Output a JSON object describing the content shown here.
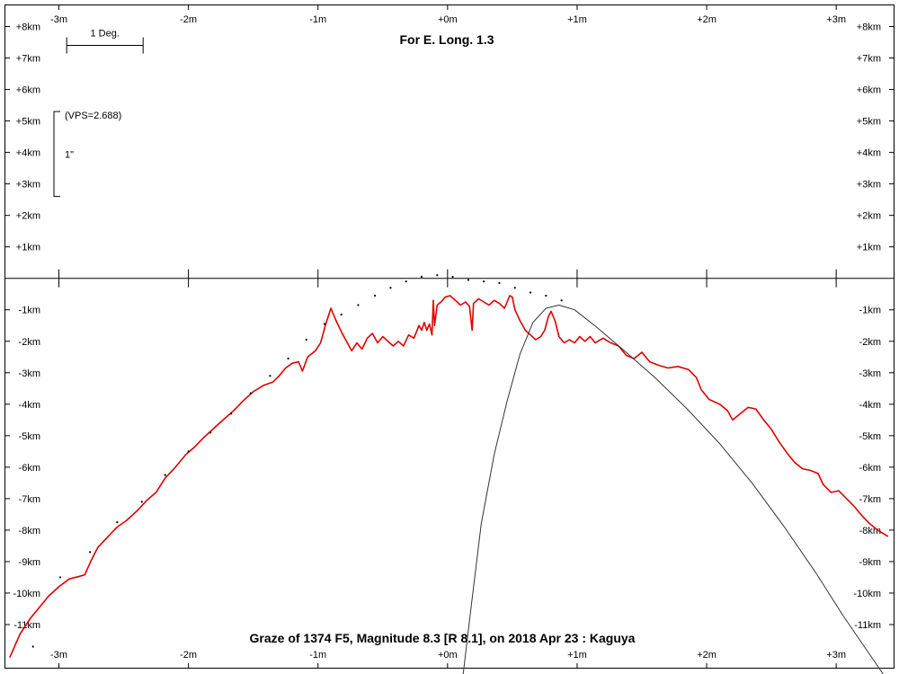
{
  "chart_data": {
    "type": "line",
    "title": "For E. Long. 1.3",
    "subtitle": "Graze of  1374 F5,  Magnitude 8.3 [R 8.1],  on 2018 Apr 23  :  Kaguya",
    "xlabel": "",
    "ylabel": "",
    "xlim": [
      -3.42,
      3.45
    ],
    "ylim": [
      -12.4,
      8.7
    ],
    "grid": false,
    "x_tick_labels": [
      {
        "v": -3,
        "label": "-3m"
      },
      {
        "v": -2,
        "label": "-2m"
      },
      {
        "v": -1,
        "label": "-1m"
      },
      {
        "v": 0,
        "label": "+0m"
      },
      {
        "v": 1,
        "label": "+1m"
      },
      {
        "v": 2,
        "label": "+2m"
      },
      {
        "v": 3,
        "label": "+3m"
      }
    ],
    "y_tick_labels": [
      {
        "v": 8,
        "label": "+8km"
      },
      {
        "v": 7,
        "label": "+7km"
      },
      {
        "v": 6,
        "label": "+6km"
      },
      {
        "v": 5,
        "label": "+5km"
      },
      {
        "v": 4,
        "label": "+4km"
      },
      {
        "v": 3,
        "label": "+3km"
      },
      {
        "v": 2,
        "label": "+2km"
      },
      {
        "v": 1,
        "label": "+1km"
      },
      {
        "v": -1,
        "label": "-1km"
      },
      {
        "v": -2,
        "label": "-2km"
      },
      {
        "v": -3,
        "label": "-3km"
      },
      {
        "v": -4,
        "label": "-4km"
      },
      {
        "v": -5,
        "label": "-5km"
      },
      {
        "v": -6,
        "label": "-6km"
      },
      {
        "v": -7,
        "label": "-7km"
      },
      {
        "v": -8,
        "label": "-8km"
      },
      {
        "v": -9,
        "label": "-9km"
      },
      {
        "v": -10,
        "label": "-10km"
      },
      {
        "v": -11,
        "label": "-11km"
      }
    ],
    "scale_bar": {
      "label": "1 Deg.",
      "x_start": -2.94,
      "x_end": -2.35,
      "y": 7.4
    },
    "vps": {
      "label": "(VPS=2.688)",
      "arc_label": "1\"",
      "y_top": 5.3,
      "y_bottom": 2.6
    },
    "series": [
      {
        "color": "#e00000",
        "style": "solid",
        "points": [
          [
            -3.38,
            -12.05
          ],
          [
            -3.3,
            -11.3
          ],
          [
            -3.22,
            -10.8
          ],
          [
            -3.15,
            -10.45
          ],
          [
            -3.08,
            -10.1
          ],
          [
            -3.0,
            -9.8
          ],
          [
            -2.92,
            -9.55
          ],
          [
            -2.85,
            -9.48
          ],
          [
            -2.8,
            -9.42
          ],
          [
            -2.75,
            -8.95
          ],
          [
            -2.7,
            -8.55
          ],
          [
            -2.62,
            -8.2
          ],
          [
            -2.55,
            -7.9
          ],
          [
            -2.48,
            -7.7
          ],
          [
            -2.4,
            -7.4
          ],
          [
            -2.32,
            -7.05
          ],
          [
            -2.25,
            -6.8
          ],
          [
            -2.18,
            -6.35
          ],
          [
            -2.1,
            -6.0
          ],
          [
            -2.02,
            -5.6
          ],
          [
            -1.95,
            -5.35
          ],
          [
            -1.88,
            -5.05
          ],
          [
            -1.8,
            -4.75
          ],
          [
            -1.72,
            -4.45
          ],
          [
            -1.65,
            -4.2
          ],
          [
            -1.58,
            -3.9
          ],
          [
            -1.5,
            -3.6
          ],
          [
            -1.42,
            -3.4
          ],
          [
            -1.35,
            -3.3
          ],
          [
            -1.3,
            -3.1
          ],
          [
            -1.25,
            -2.85
          ],
          [
            -1.2,
            -2.7
          ],
          [
            -1.15,
            -2.65
          ],
          [
            -1.12,
            -2.95
          ],
          [
            -1.08,
            -2.5
          ],
          [
            -1.02,
            -2.3
          ],
          [
            -0.98,
            -2.05
          ],
          [
            -0.94,
            -1.45
          ],
          [
            -0.9,
            -0.95
          ],
          [
            -0.86,
            -1.35
          ],
          [
            -0.82,
            -1.7
          ],
          [
            -0.78,
            -2.0
          ],
          [
            -0.74,
            -2.3
          ],
          [
            -0.7,
            -2.05
          ],
          [
            -0.66,
            -2.25
          ],
          [
            -0.62,
            -1.9
          ],
          [
            -0.58,
            -1.75
          ],
          [
            -0.54,
            -2.05
          ],
          [
            -0.5,
            -1.85
          ],
          [
            -0.46,
            -2.0
          ],
          [
            -0.42,
            -2.15
          ],
          [
            -0.38,
            -2.0
          ],
          [
            -0.34,
            -2.15
          ],
          [
            -0.3,
            -1.8
          ],
          [
            -0.26,
            -1.9
          ],
          [
            -0.22,
            -1.5
          ],
          [
            -0.2,
            -1.65
          ],
          [
            -0.18,
            -1.4
          ],
          [
            -0.16,
            -1.65
          ],
          [
            -0.14,
            -1.45
          ],
          [
            -0.12,
            -1.8
          ],
          [
            -0.11,
            -0.7
          ],
          [
            -0.1,
            -1.5
          ],
          [
            -0.08,
            -0.85
          ],
          [
            -0.05,
            -0.75
          ],
          [
            -0.02,
            -0.6
          ],
          [
            0.02,
            -0.55
          ],
          [
            0.06,
            -0.7
          ],
          [
            0.1,
            -0.85
          ],
          [
            0.14,
            -0.75
          ],
          [
            0.17,
            -0.9
          ],
          [
            0.19,
            -1.65
          ],
          [
            0.2,
            -0.8
          ],
          [
            0.24,
            -0.65
          ],
          [
            0.28,
            -0.75
          ],
          [
            0.32,
            -0.85
          ],
          [
            0.36,
            -0.7
          ],
          [
            0.4,
            -0.8
          ],
          [
            0.44,
            -0.95
          ],
          [
            0.48,
            -0.55
          ],
          [
            0.5,
            -0.6
          ],
          [
            0.52,
            -1.0
          ],
          [
            0.56,
            -1.35
          ],
          [
            0.6,
            -1.65
          ],
          [
            0.64,
            -1.8
          ],
          [
            0.68,
            -1.95
          ],
          [
            0.72,
            -1.85
          ],
          [
            0.75,
            -1.65
          ],
          [
            0.78,
            -1.2
          ],
          [
            0.8,
            -1.05
          ],
          [
            0.83,
            -1.35
          ],
          [
            0.86,
            -1.85
          ],
          [
            0.9,
            -2.05
          ],
          [
            0.94,
            -1.95
          ],
          [
            0.98,
            -2.05
          ],
          [
            1.02,
            -1.85
          ],
          [
            1.06,
            -2.0
          ],
          [
            1.1,
            -1.85
          ],
          [
            1.14,
            -2.05
          ],
          [
            1.2,
            -1.9
          ],
          [
            1.26,
            -2.05
          ],
          [
            1.32,
            -2.15
          ],
          [
            1.38,
            -2.45
          ],
          [
            1.44,
            -2.55
          ],
          [
            1.5,
            -2.35
          ],
          [
            1.56,
            -2.65
          ],
          [
            1.62,
            -2.75
          ],
          [
            1.7,
            -2.85
          ],
          [
            1.78,
            -2.8
          ],
          [
            1.86,
            -2.9
          ],
          [
            1.92,
            -3.15
          ],
          [
            1.96,
            -3.55
          ],
          [
            2.02,
            -3.85
          ],
          [
            2.1,
            -4.0
          ],
          [
            2.16,
            -4.2
          ],
          [
            2.2,
            -4.5
          ],
          [
            2.26,
            -4.3
          ],
          [
            2.32,
            -4.1
          ],
          [
            2.38,
            -4.15
          ],
          [
            2.44,
            -4.5
          ],
          [
            2.5,
            -4.8
          ],
          [
            2.56,
            -5.2
          ],
          [
            2.62,
            -5.55
          ],
          [
            2.68,
            -5.85
          ],
          [
            2.74,
            -6.05
          ],
          [
            2.8,
            -6.1
          ],
          [
            2.86,
            -6.2
          ],
          [
            2.9,
            -6.55
          ],
          [
            2.96,
            -6.8
          ],
          [
            3.02,
            -6.75
          ],
          [
            3.08,
            -7.0
          ],
          [
            3.14,
            -7.25
          ],
          [
            3.2,
            -7.55
          ],
          [
            3.26,
            -7.8
          ],
          [
            3.32,
            -8.0
          ],
          [
            3.4,
            -8.2
          ]
        ]
      },
      {
        "color": "#000000",
        "style": "dotted",
        "points": [
          [
            -3.2,
            -11.7
          ],
          [
            -2.99,
            -9.5
          ],
          [
            -2.76,
            -8.7
          ],
          [
            -2.55,
            -7.75
          ],
          [
            -2.36,
            -7.1
          ],
          [
            -2.18,
            -6.25
          ],
          [
            -2.0,
            -5.5
          ],
          [
            -1.83,
            -4.9
          ],
          [
            -1.67,
            -4.3
          ],
          [
            -1.52,
            -3.65
          ],
          [
            -1.37,
            -3.1
          ],
          [
            -1.23,
            -2.55
          ],
          [
            -1.09,
            -1.95
          ],
          [
            -0.95,
            -1.45
          ],
          [
            -0.82,
            -1.15
          ],
          [
            -0.69,
            -0.85
          ],
          [
            -0.56,
            -0.55
          ],
          [
            -0.44,
            -0.3
          ],
          [
            -0.32,
            -0.1
          ],
          [
            -0.2,
            0.05
          ],
          [
            -0.08,
            0.1
          ],
          [
            0.04,
            0.05
          ],
          [
            0.16,
            -0.05
          ],
          [
            0.28,
            -0.1
          ],
          [
            0.4,
            -0.15
          ],
          [
            0.52,
            -0.3
          ],
          [
            0.64,
            -0.45
          ],
          [
            0.76,
            -0.55
          ],
          [
            0.88,
            -0.7
          ]
        ]
      },
      {
        "color": "#333333",
        "style": "solid",
        "points": [
          [
            0.12,
            -12.6
          ],
          [
            0.18,
            -10.5
          ],
          [
            0.26,
            -7.8
          ],
          [
            0.36,
            -5.6
          ],
          [
            0.46,
            -3.9
          ],
          [
            0.56,
            -2.4
          ],
          [
            0.66,
            -1.4
          ],
          [
            0.76,
            -0.95
          ],
          [
            0.86,
            -0.85
          ],
          [
            0.98,
            -1.0
          ],
          [
            1.15,
            -1.55
          ],
          [
            1.35,
            -2.25
          ],
          [
            1.6,
            -3.15
          ],
          [
            1.85,
            -4.15
          ],
          [
            2.1,
            -5.25
          ],
          [
            2.35,
            -6.5
          ],
          [
            2.6,
            -7.9
          ],
          [
            2.85,
            -9.4
          ],
          [
            3.05,
            -10.7
          ],
          [
            3.25,
            -11.9
          ],
          [
            3.45,
            -13.1
          ]
        ]
      }
    ]
  }
}
